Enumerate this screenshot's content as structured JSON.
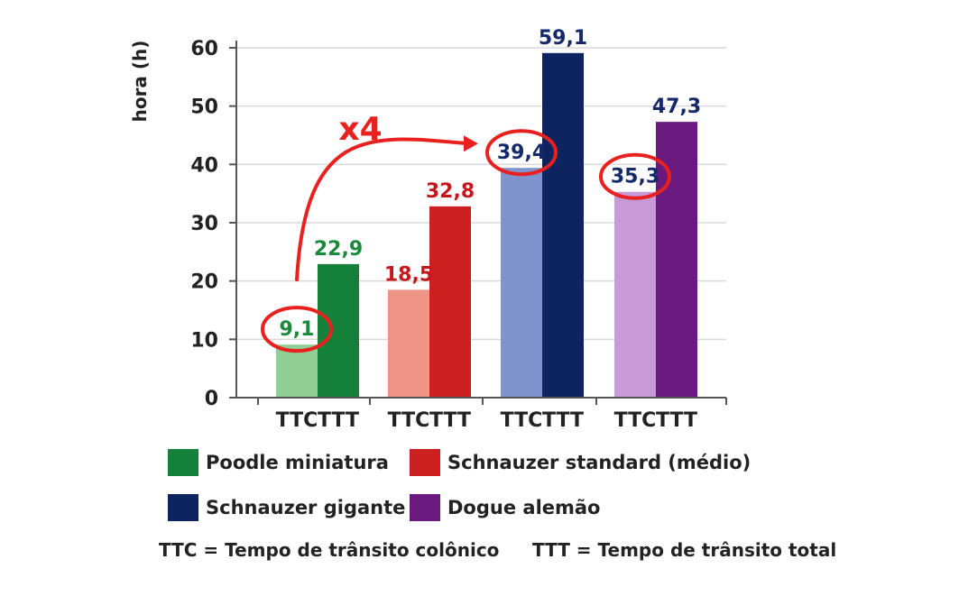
{
  "chart_data": {
    "type": "bar",
    "ylabel": "hora (h)",
    "xlabel": "",
    "ylim": [
      0,
      60
    ],
    "yticks": [
      "0",
      "10",
      "20",
      "30",
      "40",
      "50",
      "60"
    ],
    "grid": true,
    "groups": [
      {
        "name": "Poodle miniatura",
        "bars": [
          {
            "category": "TTC",
            "value": 9.1,
            "label": "9,1",
            "highlighted": true
          },
          {
            "category": "TTT",
            "value": 22.9,
            "label": "22,9"
          }
        ],
        "light_color": "#8fcf94",
        "dark_color": "#15803a",
        "label_color": "#1a8a3a"
      },
      {
        "name": "Schnauzer standard (médio)",
        "bars": [
          {
            "category": "TTC",
            "value": 18.5,
            "label": "18,5"
          },
          {
            "category": "TTT",
            "value": 32.8,
            "label": "32,8"
          }
        ],
        "light_color": "#ef9585",
        "dark_color": "#cc1f1f",
        "label_color": "#c4161c"
      },
      {
        "name": "Schnauzer gigante",
        "bars": [
          {
            "category": "TTC",
            "value": 39.4,
            "label": "39,4",
            "highlighted": true
          },
          {
            "category": "TTT",
            "value": 59.1,
            "label": "59,1"
          }
        ],
        "light_color": "#7f93cc",
        "dark_color": "#0d2460",
        "label_color": "#14286a"
      },
      {
        "name": "Dogue alemão",
        "bars": [
          {
            "category": "TTC",
            "value": 35.3,
            "label": "35,3",
            "highlighted": true
          },
          {
            "category": "TTT",
            "value": 47.3,
            "label": "47,3"
          }
        ],
        "light_color": "#c89ad8",
        "dark_color": "#6a1a7e",
        "label_color": "#14286a"
      }
    ],
    "annotation": {
      "text": "x4",
      "color": "#e8211e"
    }
  },
  "legend": [
    {
      "label": "Poodle miniatura",
      "color": "#15803a"
    },
    {
      "label": "Schnauzer standard (médio)",
      "color": "#cc1f1f"
    },
    {
      "label": "Schnauzer gigante",
      "color": "#0d2460"
    },
    {
      "label": "Dogue alemão",
      "color": "#6a1a7e"
    }
  ],
  "footnote": {
    "ttc": "TTC = Tempo de trânsito colônico",
    "ttt": "TTT = Tempo de trânsito total"
  }
}
